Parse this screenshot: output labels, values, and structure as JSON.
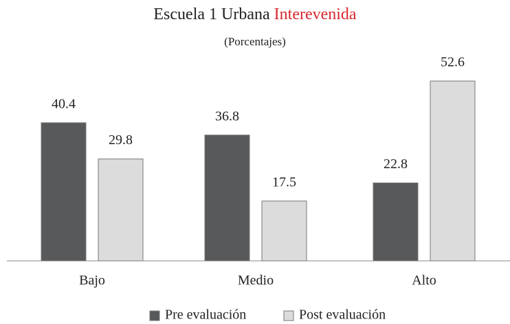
{
  "chart_data": {
    "type": "bar",
    "title": "Escuela 1 Urbana",
    "title_highlight": "Interevenida",
    "title_highlight_color": "#d9272e",
    "subtitle": "(Porcentajes)",
    "categories": [
      "Bajo",
      "Medio",
      "Alto"
    ],
    "series": [
      {
        "name": "Pre evaluación",
        "color": "#58595b",
        "values": [
          40.4,
          36.8,
          22.8
        ]
      },
      {
        "name": "Post evaluación",
        "color": "#dcdcdc",
        "values": [
          29.8,
          17.5,
          52.6
        ]
      }
    ],
    "legend": "bottom"
  }
}
